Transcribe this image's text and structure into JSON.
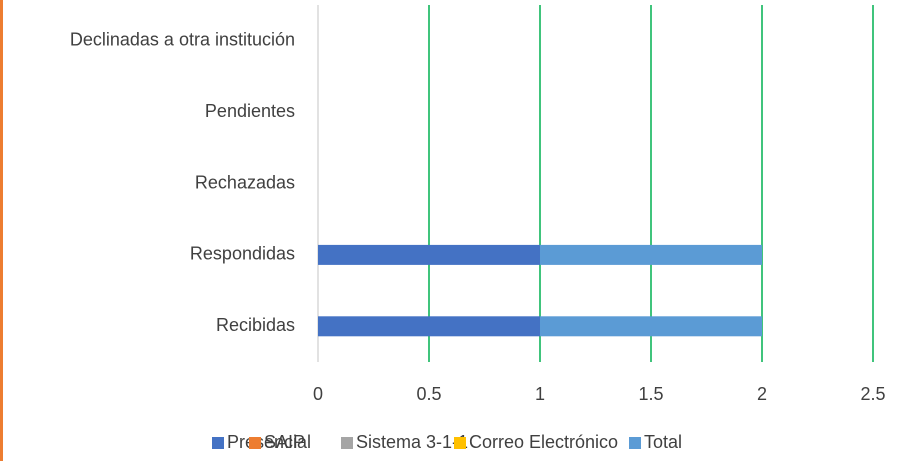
{
  "chart_data": {
    "type": "bar",
    "orientation": "horizontal",
    "stacked": true,
    "categories": [
      "Recibidas",
      "Respondidas",
      "Rechazadas",
      "Pendientes",
      "Declinadas a otra institución"
    ],
    "series": [
      {
        "name": "Presencial",
        "color": "#4472c4",
        "values": [
          1,
          1,
          0,
          0,
          0
        ]
      },
      {
        "name": "SAIP",
        "color": "#ed7d31",
        "values": [
          0,
          0,
          0,
          0,
          0
        ]
      },
      {
        "name": "Sistema 3-1-1",
        "color": "#a5a5a5",
        "values": [
          0,
          0,
          0,
          0,
          0
        ]
      },
      {
        "name": "Correo Electrónico",
        "color": "#ffc000",
        "values": [
          0,
          0,
          0,
          0,
          0
        ]
      },
      {
        "name": "Total",
        "color": "#5b9bd5",
        "values": [
          1,
          1,
          0,
          0,
          0
        ]
      }
    ],
    "xlim": [
      0,
      2.5
    ],
    "xticks": [
      0,
      0.5,
      1,
      1.5,
      2,
      2.5
    ],
    "grid": true,
    "legend": "bottom"
  }
}
